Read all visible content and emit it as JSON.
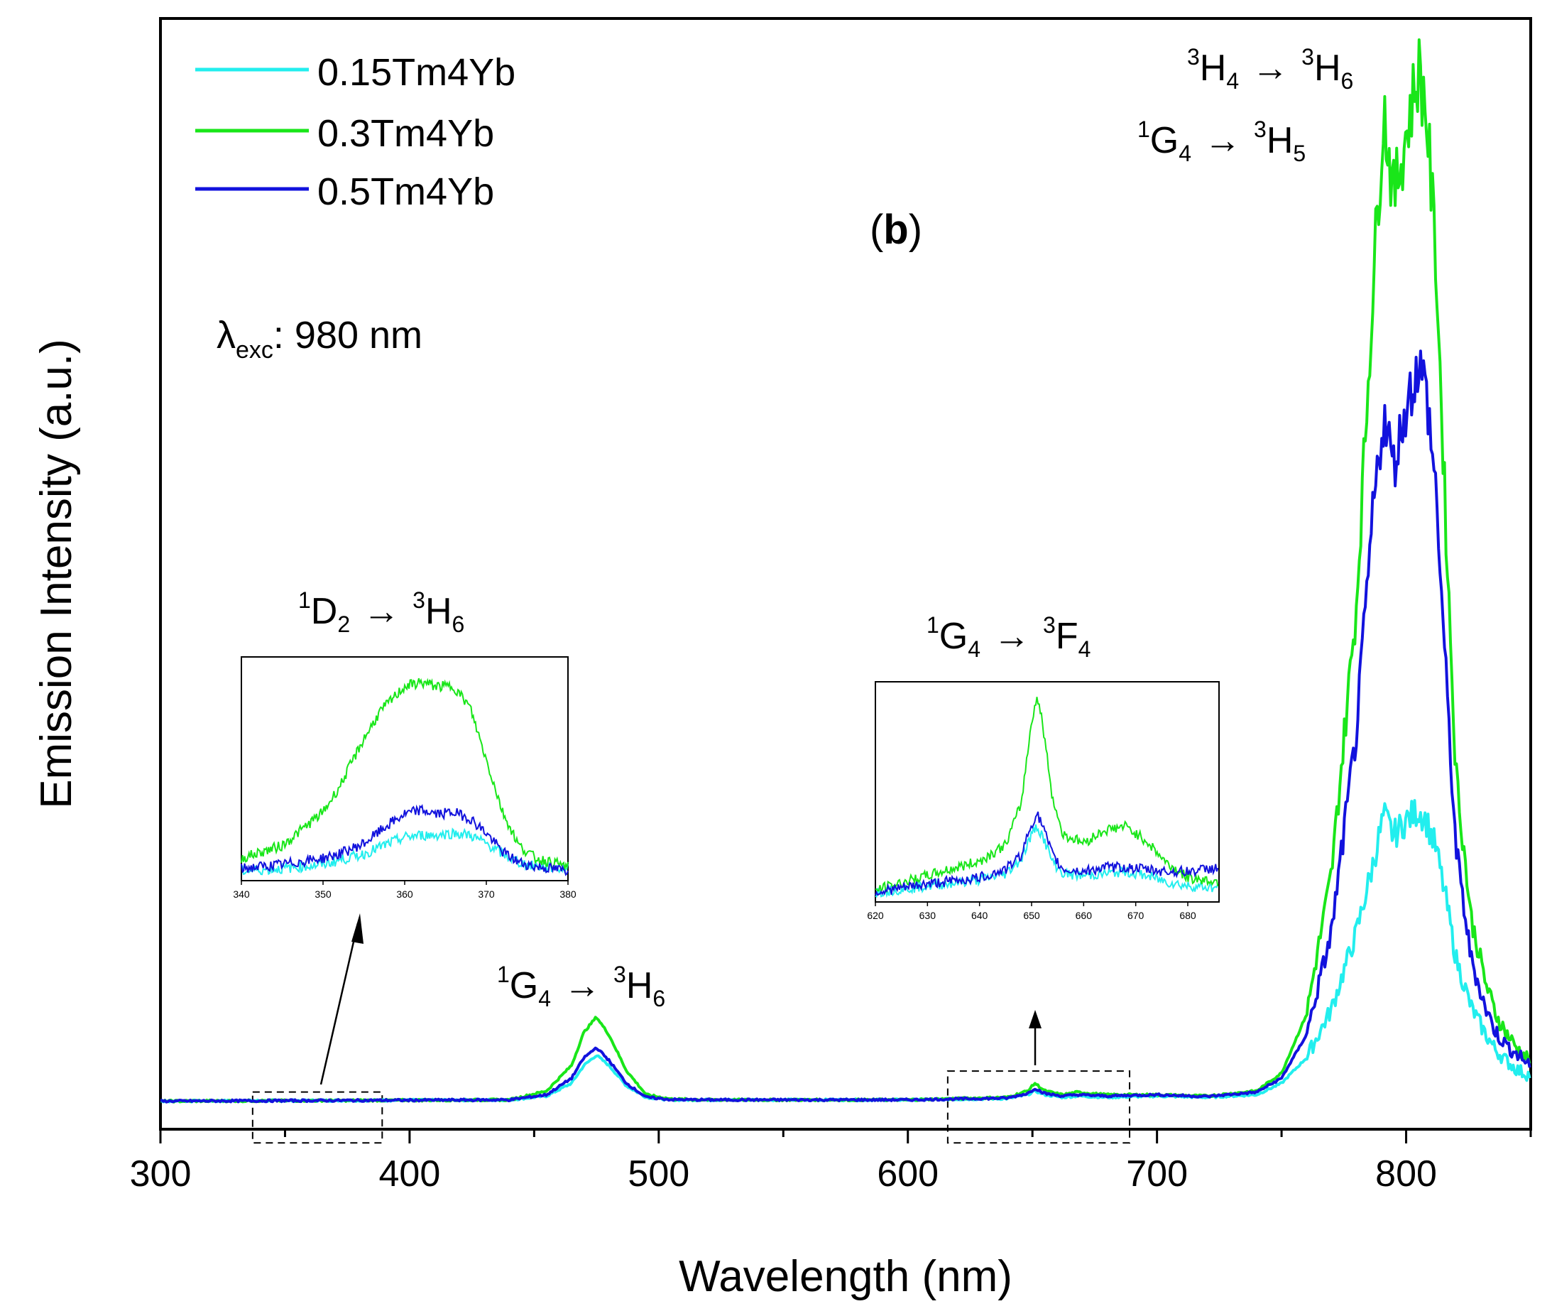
{
  "chart_data": {
    "type": "line",
    "panel_label": "b",
    "excitation_label": {
      "symbol": "λ",
      "subscript": "exc",
      "value": ": 980 nm"
    },
    "xlabel": "Wavelength (nm)",
    "ylabel": "Emission Intensity (a.u.)",
    "xlim": [
      300,
      850
    ],
    "ylim": [
      -0.05,
      4.3
    ],
    "xticks": [
      300,
      400,
      500,
      600,
      700,
      800
    ],
    "xtick_labels": [
      "300",
      "400",
      "500",
      "600",
      "700",
      "800"
    ],
    "legend_position": "top-left",
    "series": [
      {
        "name": "0.15Tm4Yb",
        "color": "#22eeee",
        "x": [
          300,
          440,
          455,
          465,
          470,
          475,
          480,
          487,
          495,
          505,
          520,
          600,
          640,
          648,
          651,
          655,
          662,
          668,
          680,
          700,
          720,
          740,
          750,
          760,
          770,
          780,
          787,
          791,
          795,
          800,
          805,
          808,
          812,
          816,
          820,
          826,
          832,
          836,
          840,
          845,
          850
        ],
        "y": [
          0.06,
          0.065,
          0.08,
          0.13,
          0.2,
          0.24,
          0.2,
          0.12,
          0.075,
          0.065,
          0.065,
          0.065,
          0.07,
          0.085,
          0.1,
          0.085,
          0.075,
          0.08,
          0.075,
          0.08,
          0.075,
          0.085,
          0.13,
          0.23,
          0.42,
          0.72,
          1.0,
          1.18,
          1.1,
          1.16,
          1.2,
          1.16,
          1.05,
          0.85,
          0.62,
          0.43,
          0.32,
          0.26,
          0.22,
          0.18,
          0.16
        ]
      },
      {
        "name": "0.3Tm4Yb",
        "color": "#19e619",
        "x": [
          300,
          440,
          455,
          465,
          470,
          475,
          480,
          487,
          495,
          505,
          520,
          600,
          640,
          648,
          651,
          655,
          662,
          668,
          680,
          700,
          720,
          740,
          750,
          760,
          770,
          780,
          787,
          791,
          795,
          800,
          805,
          808,
          812,
          816,
          820,
          826,
          832,
          836,
          840,
          845,
          850
        ],
        "y": [
          0.06,
          0.065,
          0.1,
          0.2,
          0.33,
          0.39,
          0.32,
          0.18,
          0.085,
          0.068,
          0.065,
          0.065,
          0.075,
          0.1,
          0.13,
          0.1,
          0.085,
          0.095,
          0.085,
          0.085,
          0.08,
          0.1,
          0.17,
          0.4,
          0.95,
          2.0,
          3.3,
          3.95,
          3.6,
          3.85,
          4.1,
          3.95,
          3.35,
          2.3,
          1.35,
          0.78,
          0.52,
          0.4,
          0.33,
          0.26,
          0.22
        ]
      },
      {
        "name": "0.5Tm4Yb",
        "color": "#1212dd",
        "x": [
          300,
          440,
          455,
          465,
          470,
          475,
          480,
          487,
          495,
          505,
          520,
          600,
          640,
          648,
          651,
          655,
          662,
          668,
          680,
          700,
          720,
          740,
          750,
          760,
          770,
          780,
          787,
          791,
          795,
          800,
          805,
          808,
          812,
          816,
          820,
          826,
          832,
          836,
          840,
          845,
          850
        ],
        "y": [
          0.06,
          0.065,
          0.085,
          0.15,
          0.23,
          0.27,
          0.22,
          0.13,
          0.075,
          0.066,
          0.065,
          0.065,
          0.072,
          0.09,
          0.11,
          0.09,
          0.08,
          0.085,
          0.08,
          0.085,
          0.078,
          0.095,
          0.15,
          0.32,
          0.72,
          1.5,
          2.4,
          2.75,
          2.55,
          2.78,
          2.95,
          2.85,
          2.45,
          1.72,
          1.05,
          0.62,
          0.42,
          0.33,
          0.28,
          0.24,
          0.2
        ]
      }
    ],
    "annotations": [
      {
        "id": "t1",
        "upper": "1",
        "main": "D",
        "lower": "2",
        "arrow": "→",
        "upper2": "3",
        "main2": "H",
        "lower2": "6"
      },
      {
        "id": "t2",
        "upper": "1",
        "main": "G",
        "lower": "4",
        "arrow": "→",
        "upper2": "3",
        "main2": "H",
        "lower2": "6"
      },
      {
        "id": "t3",
        "upper": "1",
        "main": "G",
        "lower": "4",
        "arrow": "→",
        "upper2": "3",
        "main2": "F",
        "lower2": "4"
      },
      {
        "id": "t4",
        "upper": "3",
        "main": "H",
        "lower": "4",
        "arrow": "→",
        "upper2": "3",
        "main2": "H",
        "lower2": "6"
      },
      {
        "id": "t5",
        "upper": "1",
        "main": "G",
        "lower": "4",
        "arrow": "→",
        "upper2": "3",
        "main2": "H",
        "lower2": "5"
      }
    ],
    "insets": [
      {
        "name": "inset-blue-band",
        "xlim": [
          340,
          380
        ],
        "ylim": [
          0,
          1
        ],
        "xticks": [
          340,
          350,
          360,
          370,
          380
        ],
        "xtick_labels": [
          "340",
          "350",
          "360",
          "370",
          "380"
        ],
        "zoom_region": {
          "xlim": [
            337,
            389
          ]
        },
        "series": [
          {
            "name": "0.15Tm4Yb",
            "color": "#22eeee",
            "x": [
              340,
              345,
              350,
              352,
              355,
              358,
              360,
              362,
              364,
              366,
              368,
              370,
              372,
              374,
              376,
              380
            ],
            "y": [
              0.02,
              0.03,
              0.05,
              0.07,
              0.1,
              0.15,
              0.18,
              0.19,
              0.19,
              0.2,
              0.19,
              0.15,
              0.1,
              0.06,
              0.04,
              0.03
            ]
          },
          {
            "name": "0.3Tm4Yb",
            "color": "#19e619",
            "x": [
              340,
              345,
              350,
              352,
              355,
              357,
              360,
              362,
              364,
              366,
              368,
              370,
              372,
              374,
              376,
              380
            ],
            "y": [
              0.08,
              0.14,
              0.3,
              0.42,
              0.65,
              0.78,
              0.9,
              0.92,
              0.9,
              0.9,
              0.8,
              0.55,
              0.3,
              0.14,
              0.08,
              0.04
            ]
          },
          {
            "name": "0.5Tm4Yb",
            "color": "#1212dd",
            "x": [
              340,
              345,
              350,
              352,
              355,
              358,
              360,
              362,
              364,
              366,
              368,
              370,
              372,
              374,
              376,
              380
            ],
            "y": [
              0.03,
              0.05,
              0.08,
              0.1,
              0.15,
              0.24,
              0.29,
              0.31,
              0.29,
              0.3,
              0.27,
              0.2,
              0.11,
              0.06,
              0.04,
              0.02
            ]
          }
        ]
      },
      {
        "name": "inset-red-band",
        "xlim": [
          620,
          686
        ],
        "ylim": [
          0,
          1
        ],
        "xticks": [
          620,
          630,
          640,
          650,
          660,
          670,
          680
        ],
        "xtick_labels": [
          "620",
          "630",
          "640",
          "650",
          "660",
          "670",
          "680"
        ],
        "zoom_region": {
          "xlim": [
            616,
            689
          ]
        },
        "series": [
          {
            "name": "0.15Tm4Yb",
            "color": "#22eeee",
            "x": [
              620,
              630,
              640,
              645,
              648,
              650,
              651,
              652,
              654,
              656,
              660,
              664,
              668,
              672,
              676,
              680,
              686
            ],
            "y": [
              0.02,
              0.05,
              0.08,
              0.11,
              0.18,
              0.3,
              0.34,
              0.3,
              0.17,
              0.11,
              0.1,
              0.11,
              0.12,
              0.1,
              0.07,
              0.05,
              0.04
            ]
          },
          {
            "name": "0.3Tm4Yb",
            "color": "#19e619",
            "x": [
              620,
              630,
              640,
              645,
              648,
              650,
              651,
              652,
              654,
              656,
              660,
              664,
              668,
              672,
              676,
              680,
              686
            ],
            "y": [
              0.03,
              0.1,
              0.17,
              0.25,
              0.45,
              0.85,
              0.97,
              0.86,
              0.48,
              0.3,
              0.26,
              0.32,
              0.34,
              0.27,
              0.16,
              0.09,
              0.07
            ]
          },
          {
            "name": "0.5Tm4Yb",
            "color": "#1212dd",
            "x": [
              620,
              630,
              640,
              645,
              648,
              650,
              651,
              652,
              654,
              656,
              660,
              664,
              668,
              672,
              676,
              680,
              686
            ],
            "y": [
              0.02,
              0.06,
              0.09,
              0.13,
              0.2,
              0.35,
              0.4,
              0.35,
              0.2,
              0.13,
              0.12,
              0.14,
              0.14,
              0.13,
              0.12,
              0.12,
              0.14
            ]
          }
        ]
      }
    ]
  }
}
